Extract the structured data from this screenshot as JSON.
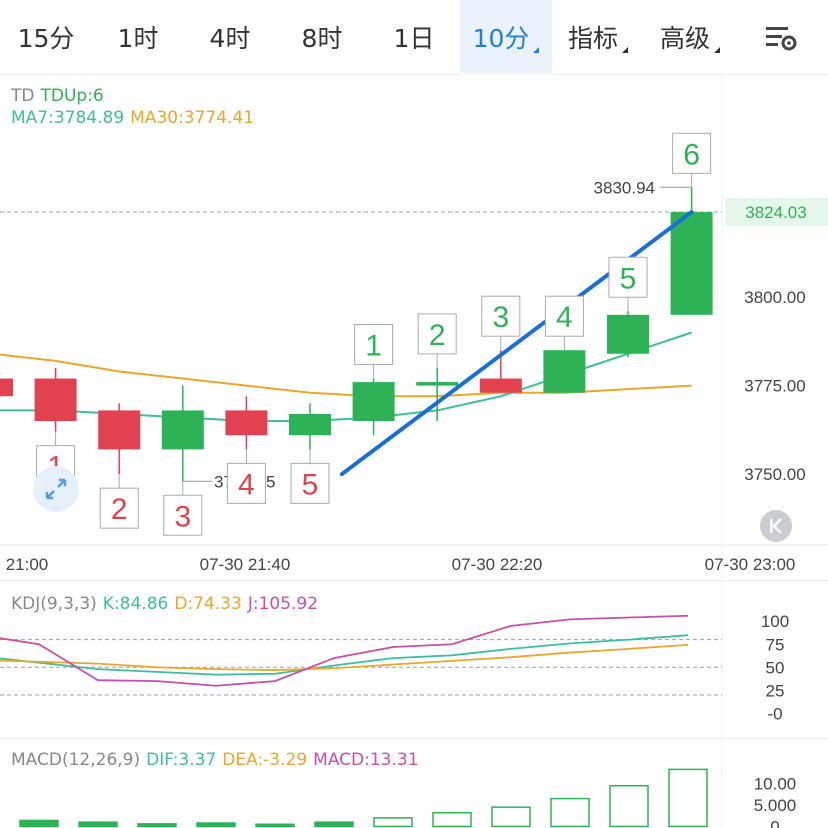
{
  "tabs": [
    {
      "label": "15分",
      "active": false,
      "menu": false
    },
    {
      "label": "1时",
      "active": false,
      "menu": false
    },
    {
      "label": "4时",
      "active": false,
      "menu": false
    },
    {
      "label": "8时",
      "active": false,
      "menu": false
    },
    {
      "label": "1日",
      "active": false,
      "menu": false
    },
    {
      "label": "10分",
      "active": true,
      "menu": true
    },
    {
      "label": "指标",
      "active": false,
      "menu": true
    },
    {
      "label": "高级",
      "active": false,
      "menu": true
    }
  ],
  "icons": {
    "settings": "chart-settings-icon",
    "zoom": "expand-arrows-icon",
    "collapse": "collapse-left-icon"
  },
  "main_legend": {
    "td_name": "TD",
    "td_value": "TDUp:6",
    "ma7": "MA7:3784.89",
    "ma30": "MA30:3774.41"
  },
  "kdj_legend": {
    "name": "KDJ(9,3,3)",
    "k": "K:84.86",
    "d": "D:74.33",
    "j": "J:105.92"
  },
  "macd_legend": {
    "name": "MACD(12,26,9)",
    "dif": "DIF:3.37",
    "dea": "DEA:-3.29",
    "macd": "MACD:13.31"
  },
  "colors": {
    "up": "#2eb256",
    "down": "#e2424f",
    "ma7": "#3dbf9e",
    "ma30": "#e9a72c",
    "j": "#c84fa8",
    "trend": "#1a6fd6",
    "accent": "#1f7fd9"
  },
  "chart_data": [
    {
      "type": "candlestick",
      "ylim": [
        3730,
        3850
      ],
      "yticks": [
        "3800.00",
        "3775.00",
        "3750.00"
      ],
      "ytick_values": [
        3800,
        3775,
        3750
      ],
      "xticks": [
        "21:00",
        "07-30 21:40",
        "07-30 22:20",
        "07-30 23:00"
      ],
      "current_price": "3824.03",
      "current_price_value": 3824.03,
      "high_label": "3830.94",
      "low_label": "3748.05",
      "candles": [
        {
          "o": 3777,
          "c": 3772,
          "h": 3777,
          "l": 3772
        },
        {
          "o": 3777,
          "c": 3765,
          "h": 3780,
          "l": 3762
        },
        {
          "o": 3768,
          "c": 3757,
          "h": 3770,
          "l": 3750
        },
        {
          "o": 3757,
          "c": 3768,
          "h": 3775,
          "l": 3748
        },
        {
          "o": 3768,
          "c": 3761,
          "h": 3772,
          "l": 3757
        },
        {
          "o": 3761,
          "c": 3767,
          "h": 3770,
          "l": 3757
        },
        {
          "o": 3765,
          "c": 3776,
          "h": 3777,
          "l": 3761
        },
        {
          "o": 3775,
          "c": 3776,
          "h": 3780,
          "l": 3765
        },
        {
          "o": 3777,
          "c": 3773,
          "h": 3785,
          "l": 3773
        },
        {
          "o": 3773,
          "c": 3785,
          "h": 3785,
          "l": 3773
        },
        {
          "o": 3784,
          "c": 3795,
          "h": 3796,
          "l": 3783
        },
        {
          "o": 3795,
          "c": 3824,
          "h": 3831,
          "l": 3795
        }
      ],
      "td_labels": [
        {
          "candle": 1,
          "text": "1",
          "side": "below",
          "kind": "down"
        },
        {
          "candle": 2,
          "text": "2",
          "side": "below",
          "kind": "down"
        },
        {
          "candle": 3,
          "text": "3",
          "side": "below",
          "kind": "down"
        },
        {
          "candle": 4,
          "text": "4",
          "side": "below",
          "kind": "down"
        },
        {
          "candle": 5,
          "text": "5",
          "side": "below",
          "kind": "down"
        },
        {
          "candle": 6,
          "text": "1",
          "side": "above",
          "kind": "up"
        },
        {
          "candle": 7,
          "text": "2",
          "side": "above",
          "kind": "up"
        },
        {
          "candle": 8,
          "text": "3",
          "side": "above",
          "kind": "up"
        },
        {
          "candle": 9,
          "text": "4",
          "side": "above",
          "kind": "up"
        },
        {
          "candle": 10,
          "text": "5",
          "side": "above",
          "kind": "up"
        },
        {
          "candle": 11,
          "text": "6",
          "side": "above",
          "kind": "up"
        }
      ],
      "ma30": [
        3784,
        3782,
        3779,
        3777,
        3775,
        3773,
        3772,
        3772,
        3773,
        3773,
        3774,
        3775
      ],
      "ma7": [
        3768,
        3768,
        3767,
        3766,
        3765,
        3765,
        3766,
        3768,
        3772,
        3778,
        3784,
        3790
      ],
      "trend_line": {
        "from": [
          5.5,
          3750
        ],
        "to": [
          11,
          3824
        ]
      }
    },
    {
      "type": "line",
      "ylim": [
        -5,
        110
      ],
      "yticks": [
        "100",
        "75",
        "50",
        "25",
        "-0"
      ],
      "ytick_values": [
        100,
        75,
        50,
        25,
        0
      ],
      "dashed_levels": [
        80,
        50,
        20
      ],
      "series": [
        {
          "name": "K",
          "values": [
            62,
            55,
            48,
            45,
            42,
            43,
            52,
            60,
            63,
            70,
            76,
            80,
            84.86
          ]
        },
        {
          "name": "D",
          "values": [
            58,
            56,
            54,
            50,
            48,
            47,
            49,
            53,
            57,
            61,
            66,
            70,
            74.33
          ]
        },
        {
          "name": "J",
          "values": [
            85,
            75,
            36,
            35,
            30,
            35,
            60,
            72,
            75,
            95,
            102,
            104,
            105.92
          ]
        }
      ]
    },
    {
      "type": "bar",
      "ylim": [
        -2,
        12
      ],
      "yticks": [
        "10.00",
        "5.000",
        "0"
      ],
      "ytick_values": [
        10,
        5,
        0
      ],
      "values": [
        1.2,
        1.4,
        1.0,
        0.6,
        0.8,
        0.5,
        1.0,
        2.0,
        3.2,
        4.5,
        6.5,
        9.5,
        13.31
      ]
    }
  ]
}
